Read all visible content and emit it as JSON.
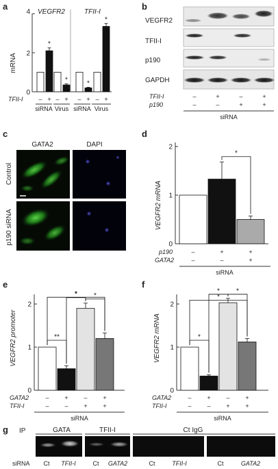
{
  "panels": {
    "a": {
      "letter": "a",
      "ylabel": "mRNA",
      "group_titles": [
        "VEGFR2",
        "TFII-I"
      ],
      "row_label": "TFII-I",
      "x_groups": [
        "siRNA",
        "Virus",
        "siRNA",
        "Virus"
      ],
      "signs": [
        "–",
        "+",
        "–",
        "+",
        "–",
        "+",
        "–",
        "+"
      ],
      "star": "*",
      "ylim": [
        0,
        4
      ],
      "yticks": [
        "0",
        "2",
        "4"
      ]
    },
    "b": {
      "letter": "b",
      "blot_labels": [
        "VEGFR2",
        "TFII-I",
        "p190",
        "GAPDH"
      ],
      "rows": [
        {
          "label": "TFII-I",
          "signs": [
            "–",
            "+",
            "–",
            "+"
          ]
        },
        {
          "label": "p190",
          "signs": [
            "–",
            "–",
            "+",
            "+"
          ]
        }
      ],
      "footer": "siRNA"
    },
    "c": {
      "letter": "c",
      "col_labels": [
        "GATA2",
        "DAPI"
      ],
      "row_labels": [
        "Control",
        "p190 siRNA"
      ]
    },
    "d": {
      "letter": "d",
      "ylabel": "VEGFR2 mRNA",
      "yticks": [
        "0",
        "1",
        "2"
      ],
      "rows": [
        {
          "label": "p190",
          "signs": [
            "–",
            "+",
            "+"
          ]
        },
        {
          "label": "GATA2",
          "signs": [
            "–",
            "–",
            "+"
          ]
        }
      ],
      "footer": "siRNA",
      "star": "*"
    },
    "e": {
      "letter": "e",
      "ylabel": "VEGFR2 promoter",
      "yticks": [
        "0",
        "1",
        "2"
      ],
      "rows": [
        {
          "label": "GATA2",
          "signs": [
            "–",
            "+",
            "–",
            "+"
          ]
        },
        {
          "label": "TFII-I",
          "signs": [
            "–",
            "–",
            "+",
            "+"
          ]
        }
      ],
      "footer": "siRNA",
      "stars": [
        "**",
        "*",
        "*",
        "*"
      ]
    },
    "f": {
      "letter": "f",
      "ylabel": "VEGFR2 mRNA",
      "yticks": [
        "0",
        "1",
        "2"
      ],
      "rows": [
        {
          "label": "GATA2",
          "signs": [
            "–",
            "+",
            "–",
            "+"
          ]
        },
        {
          "label": "TFII-I",
          "signs": [
            "–",
            "–",
            "+",
            "+"
          ]
        }
      ],
      "footer": "siRNA",
      "stars": [
        "*",
        "*",
        "*",
        "*"
      ]
    },
    "g": {
      "letter": "g",
      "ip_label": "IP",
      "groups": [
        "GATA",
        "TFII-I",
        "Ct IgG"
      ],
      "sirna_label": "siRNA",
      "lanes": [
        "Ct",
        "TFII-I",
        "Ct",
        "GATA2",
        "Ct",
        "TFII-I",
        "Ct",
        "GATA2"
      ]
    }
  },
  "chart_data": [
    {
      "type": "bar",
      "panel": "a",
      "categories": [
        "VEGFR2 siRNA –",
        "VEGFR2 siRNA +",
        "VEGFR2 Virus –",
        "VEGFR2 Virus +",
        "TFII-I siRNA –",
        "TFII-I siRNA +",
        "TFII-I Virus –",
        "TFII-I Virus +"
      ],
      "values": [
        1.0,
        2.1,
        1.0,
        0.35,
        1.0,
        0.2,
        1.0,
        3.35
      ],
      "errors": [
        0,
        0.15,
        0,
        0.05,
        0,
        0.03,
        0,
        0.15
      ],
      "ylim": [
        0,
        4
      ],
      "ylabel": "mRNA"
    },
    {
      "type": "bar",
      "panel": "d",
      "categories": [
        "p190 – GATA2 –",
        "p190 + GATA2 –",
        "p190 + GATA2 +"
      ],
      "values": [
        1.0,
        1.33,
        0.5
      ],
      "errors": [
        0,
        0.35,
        0.07
      ],
      "ylim": [
        0,
        2
      ],
      "ylabel": "VEGFR2 mRNA"
    },
    {
      "type": "bar",
      "panel": "e",
      "categories": [
        "GATA2 – TFII-I –",
        "GATA2 + TFII-I –",
        "GATA2 – TFII-I +",
        "GATA2 + TFII-I +"
      ],
      "values": [
        1.0,
        0.5,
        1.9,
        1.2
      ],
      "errors": [
        0,
        0.07,
        0.12,
        0.13
      ],
      "ylim": [
        0,
        2.2
      ],
      "ylabel": "VEGFR2 promoter"
    },
    {
      "type": "bar",
      "panel": "f",
      "categories": [
        "GATA2 – TFII-I –",
        "GATA2 + TFII-I –",
        "GATA2 – TFII-I +",
        "GATA2 + TFII-I +"
      ],
      "values": [
        1.0,
        0.33,
        2.03,
        1.12
      ],
      "errors": [
        0,
        0.03,
        0.1,
        0.08
      ],
      "ylim": [
        0,
        2.2
      ],
      "ylabel": "VEGFR2 mRNA"
    }
  ]
}
